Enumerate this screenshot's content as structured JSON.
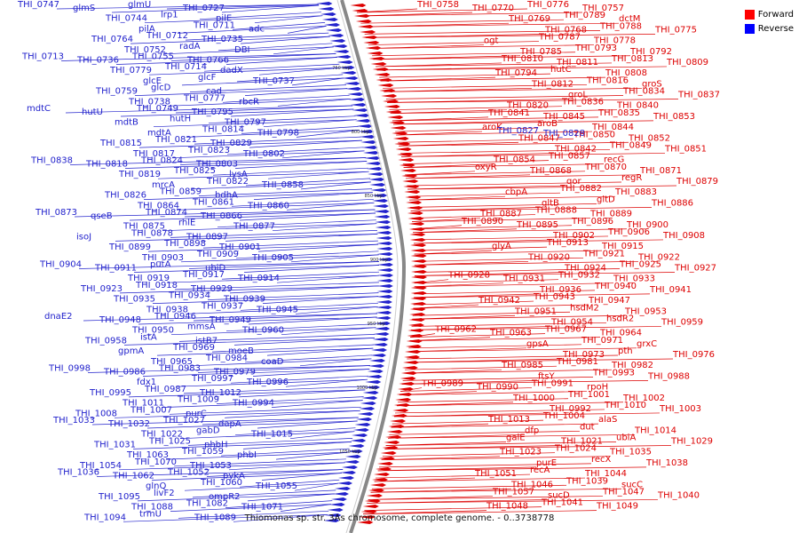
{
  "caption": "Thiomonas sp. str. 3As chromosome, complete genome. - 0..3738778",
  "legend": {
    "forward_label": "Forward",
    "forward_color": "#ff0000",
    "reverse_label": "Reverse",
    "reverse_color": "#0000ff"
  },
  "scale_ticks": [
    "750 kbp",
    "800 kbp",
    "850 kbp",
    "900 kbp",
    "950 kbp",
    "1000 kbp",
    "1050 kbp"
  ],
  "colors": {
    "forward": "#dd0000",
    "reverse": "#2222cc",
    "backbone": "#888888"
  },
  "reverse_labels": [
    "THI_0747",
    "glmS",
    "glmU",
    "THI_0727",
    "THI_0744",
    "lrp1",
    "pilE",
    "pilA",
    "THI_0711",
    "adc",
    "THI_0764",
    "THI_0712",
    "THI_0735",
    "THI_0752",
    "radA",
    "DBI",
    "THI_0713",
    "THI_0736",
    "THI_0755",
    "THI_0766",
    "THI_0779",
    "THI_0714",
    "dadX",
    "glcE",
    "glcF",
    "THI_0737",
    "THI_0759",
    "glcD",
    "cad",
    "THI_0738",
    "THI_0777",
    "rbcR",
    "mdtC",
    "hutU",
    "THI_0749",
    "THI_0795",
    "mdtB",
    "hutH",
    "THI_0797",
    "mdtA",
    "THI_0814",
    "THI_0798",
    "THI_0815",
    "THI_0821",
    "THI_0829",
    "THI_0817",
    "THI_0823",
    "THI_0802",
    "THI_0838",
    "THI_0818",
    "THI_0824",
    "THI_0803",
    "THI_0819",
    "THI_0825",
    "lysA",
    "mrcA",
    "THI_0822",
    "THI_0858",
    "THI_0826",
    "THI_0859",
    "bdhA",
    "THI_0864",
    "THI_0861",
    "THI_0860",
    "THI_0873",
    "qseB",
    "THI_0874",
    "THI_0866",
    "THI_0875",
    "rhlE",
    "THI_0877",
    "isoJ",
    "THI_0878",
    "THI_0897",
    "THI_0899",
    "THI_0898",
    "THI_0901",
    "THI_0903",
    "THI_0909",
    "THI_0905",
    "THI_0904",
    "THI_0911",
    "putA",
    "ubiD",
    "THI_0919",
    "THI_0917",
    "THI_0914",
    "THI_0923",
    "THI_0918",
    "THI_0929",
    "THI_0935",
    "THI_0934",
    "THI_0939",
    "THI_0938",
    "THI_0937",
    "THI_0945",
    "dnaE2",
    "THI_0948",
    "THI_0946",
    "THI_0949",
    "THI_0950",
    "mmsA",
    "THI_0960",
    "THI_0958",
    "istA",
    "istB7",
    "gpmA",
    "THI_0969",
    "moeB",
    "THI_0965",
    "THI_0984",
    "coaD",
    "THI_0998",
    "THI_0986",
    "THI_0983",
    "THI_0979",
    "fdx1",
    "THI_0997",
    "THI_0996",
    "THI_0995",
    "THI_0987",
    "THI_1012",
    "THI_1011",
    "THI_1009",
    "THI_0994",
    "THI_1008",
    "THI_1007",
    "purC",
    "THI_1033",
    "THI_1032",
    "THI_1027",
    "dapA",
    "THI_1022",
    "gabD",
    "THI_1015",
    "THI_1031",
    "THI_1025",
    "phbH",
    "THI_1063",
    "THI_1059",
    "phbI",
    "THI_1054",
    "THI_1070",
    "THI_1053",
    "THI_1036",
    "THI_1062",
    "THI_1052",
    "pykA",
    "glnQ",
    "THI_1060",
    "THI_1055",
    "THI_1095",
    "livF2",
    "ompR2",
    "THI_1088",
    "THI_1082",
    "THI_1071",
    "THI_1094",
    "trmU",
    "THI_1089"
  ],
  "forward_labels": [
    "THI_0758",
    "THI_0770",
    "THI_0776",
    "THI_0757",
    "THI_0769",
    "THI_0789",
    "dctM",
    "THI_0768",
    "THI_0788",
    "THI_0775",
    "ogt",
    "THI_0787",
    "THI_0778",
    "THI_0785",
    "THI_0793",
    "THI_0792",
    "THI_0810",
    "THI_0811",
    "THI_0813",
    "THI_0809",
    "THI_0794",
    "hutC",
    "THI_0808",
    "THI_0812",
    "THI_0816",
    "groS",
    "groL",
    "THI_0834",
    "THI_0837",
    "THI_0820",
    "THI_0836",
    "THI_0840",
    "THI_0841",
    "THI_0845",
    "THI_0835",
    "THI_0853",
    "aroK",
    "aroB",
    "THI_0844",
    "THI_0847",
    "THI_0850",
    "THI_0852",
    "THI_0842",
    "THI_0849",
    "THI_0851",
    "THI_0854",
    "THI_0857",
    "recG",
    "oxyR",
    "THI_0868",
    "THI_0870",
    "THI_0871",
    "qor",
    "regR",
    "THI_0879",
    "cbpA",
    "THI_0882",
    "THI_0883",
    "gltB",
    "gltD",
    "THI_0886",
    "THI_0887",
    "THI_0888",
    "THI_0889",
    "THI_0890",
    "THI_0895",
    "THI_0896",
    "THI_0900",
    "THI_0902",
    "THI_0906",
    "THI_0908",
    "glyA",
    "THI_0913",
    "THI_0915",
    "THI_0920",
    "THI_0921",
    "THI_0922",
    "THI_0924",
    "THI_0925",
    "THI_0927",
    "THI_0928",
    "THI_0931",
    "THI_0932",
    "THI_0933",
    "THI_0936",
    "THI_0940",
    "THI_0941",
    "THI_0942",
    "THI_0943",
    "THI_0947",
    "THI_0951",
    "hsdM2",
    "THI_0953",
    "THI_0954",
    "hsdR2",
    "THI_0959",
    "THI_0962",
    "THI_0963",
    "THI_0967",
    "THI_0964",
    "gpsA",
    "THI_0971",
    "grxC",
    "THI_0973",
    "pth",
    "THI_0976",
    "THI_0985",
    "THI_0981",
    "THI_0982",
    "ftsY",
    "THI_0993",
    "THI_0988",
    "THI_0989",
    "THI_0990",
    "THI_0991",
    "rpoH",
    "THI_1000",
    "THI_1001",
    "THI_1002",
    "THI_0992",
    "THI_1010",
    "THI_1003",
    "THI_1013",
    "THI_1004",
    "alaS",
    "dfp",
    "dut",
    "THI_1014",
    "galE",
    "THI_1021",
    "ubiA",
    "THI_1029",
    "THI_1023",
    "THI_1024",
    "THI_1035",
    "purE",
    "recX",
    "THI_1038",
    "THI_1051",
    "recA",
    "THI_1044",
    "THI_1046",
    "THI_1039",
    "sucC",
    "THI_1057",
    "sucD",
    "THI_1047",
    "THI_1040",
    "THI_1048",
    "THI_1041",
    "THI_1049"
  ],
  "forward_blue_labels": [
    "THI_0827",
    "THI_0828"
  ]
}
